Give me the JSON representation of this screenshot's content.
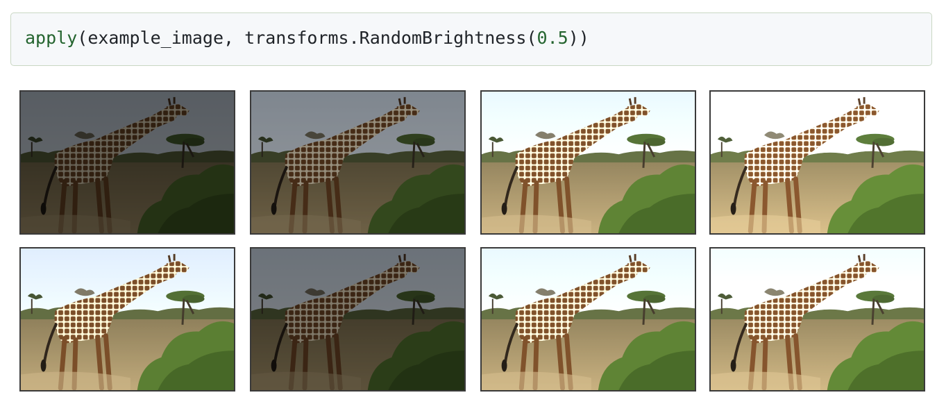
{
  "code_cell": {
    "function_name": "apply",
    "open_paren": "(",
    "argument_text": "example_image, transforms.RandomBrightness(",
    "number": "0.5",
    "close_parens": "))"
  },
  "output": {
    "image_subject": "giraffe-photo",
    "panels": [
      {
        "brightness": 0.45
      },
      {
        "brightness": 0.65
      },
      {
        "brightness": 1.2
      },
      {
        "brightness": 1.3
      },
      {
        "brightness": 1.15
      },
      {
        "brightness": 0.55
      },
      {
        "brightness": 1.2
      },
      {
        "brightness": 1.25
      }
    ]
  }
}
